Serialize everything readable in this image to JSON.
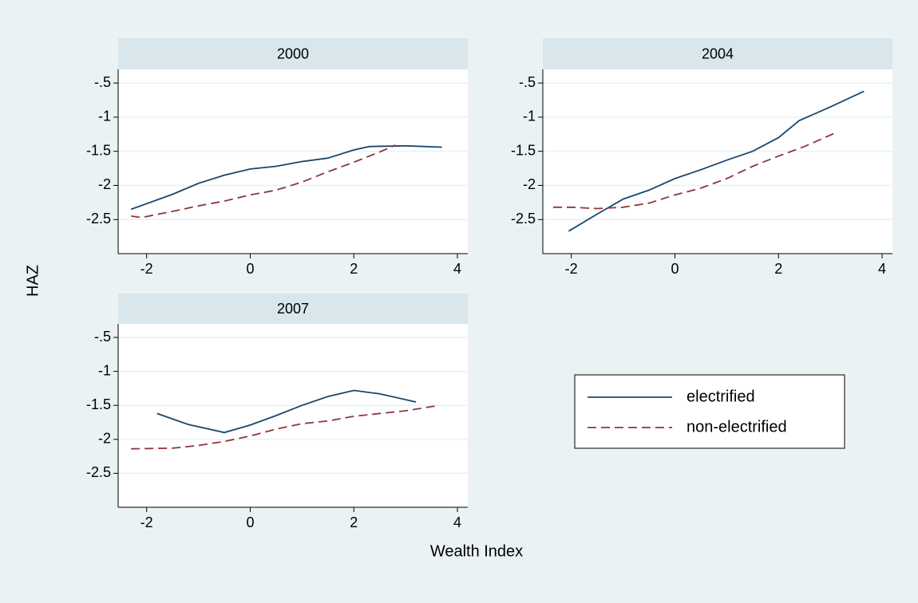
{
  "xlabel": "Wealth Index",
  "ylabel": "HAZ",
  "chart_data": [
    {
      "type": "line",
      "title": "2000",
      "xlim": [
        -2.55,
        4.2
      ],
      "ylim": [
        -3.0,
        -0.3
      ],
      "xticks": [
        -2,
        0,
        2,
        4
      ],
      "yticks": [
        {
          "value": -0.5,
          "label": "-.5"
        },
        -1,
        -1.5,
        -2,
        -2.5
      ],
      "grid": true,
      "series": [
        {
          "name": "electrified",
          "color": "#1a476f",
          "line_style": "solid",
          "x": [
            -2.3,
            -1.5,
            -1,
            -0.5,
            0,
            0.5,
            1,
            1.5,
            2,
            2.3,
            3,
            3.7
          ],
          "values": [
            -2.35,
            -2.13,
            -1.97,
            -1.85,
            -1.76,
            -1.72,
            -1.65,
            -1.6,
            -1.48,
            -1.43,
            -1.42,
            -1.44
          ]
        },
        {
          "name": "non-electrified",
          "color": "#90353b",
          "line_style": "dashed",
          "x": [
            -2.3,
            -2.1,
            -1.5,
            -1,
            -0.5,
            0,
            0.5,
            1,
            1.5,
            2,
            2.5,
            2.8
          ],
          "values": [
            -2.45,
            -2.47,
            -2.38,
            -2.3,
            -2.23,
            -2.14,
            -2.07,
            -1.95,
            -1.8,
            -1.66,
            -1.51,
            -1.41
          ]
        }
      ]
    },
    {
      "type": "line",
      "title": "2004",
      "xlim": [
        -2.55,
        4.2
      ],
      "ylim": [
        -3.0,
        -0.3
      ],
      "xticks": [
        -2,
        0,
        2,
        4
      ],
      "yticks": [
        {
          "value": -0.5,
          "label": "-.5"
        },
        -1,
        -1.5,
        -2,
        -2.5
      ],
      "grid": true,
      "series": [
        {
          "name": "electrified",
          "color": "#1a476f",
          "line_style": "solid",
          "x": [
            -2.05,
            -1.5,
            -1,
            -0.5,
            0,
            0.5,
            1,
            1.5,
            2,
            2.4,
            3,
            3.65
          ],
          "values": [
            -2.67,
            -2.42,
            -2.2,
            -2.07,
            -1.9,
            -1.77,
            -1.63,
            -1.5,
            -1.3,
            -1.05,
            -0.85,
            -0.62
          ]
        },
        {
          "name": "non-electrified",
          "color": "#90353b",
          "line_style": "dashed",
          "x": [
            -2.35,
            -2,
            -1.5,
            -1,
            -0.5,
            0,
            0.5,
            1,
            1.5,
            2,
            2.5,
            3.1
          ],
          "values": [
            -2.32,
            -2.32,
            -2.34,
            -2.32,
            -2.26,
            -2.14,
            -2.04,
            -1.9,
            -1.72,
            -1.57,
            -1.43,
            -1.23
          ]
        }
      ]
    },
    {
      "type": "line",
      "title": "2007",
      "xlim": [
        -2.55,
        4.2
      ],
      "ylim": [
        -3.0,
        -0.3
      ],
      "xticks": [
        -2,
        0,
        2,
        4
      ],
      "yticks": [
        {
          "value": -0.5,
          "label": "-.5"
        },
        -1,
        -1.5,
        -2,
        -2.5
      ],
      "grid": true,
      "series": [
        {
          "name": "electrified",
          "color": "#1a476f",
          "line_style": "solid",
          "x": [
            -1.8,
            -1.2,
            -0.5,
            0,
            0.5,
            1,
            1.5,
            2,
            2.5,
            3.2
          ],
          "values": [
            -1.62,
            -1.78,
            -1.9,
            -1.79,
            -1.65,
            -1.5,
            -1.37,
            -1.28,
            -1.33,
            -1.45
          ]
        },
        {
          "name": "non-electrified",
          "color": "#90353b",
          "line_style": "dashed",
          "x": [
            -2.3,
            -1.5,
            -1,
            -0.5,
            0,
            0.5,
            1,
            1.5,
            2,
            3,
            3.65
          ],
          "values": [
            -2.14,
            -2.13,
            -2.09,
            -2.03,
            -1.95,
            -1.85,
            -1.77,
            -1.73,
            -1.66,
            -1.58,
            -1.5
          ]
        }
      ]
    }
  ]
}
